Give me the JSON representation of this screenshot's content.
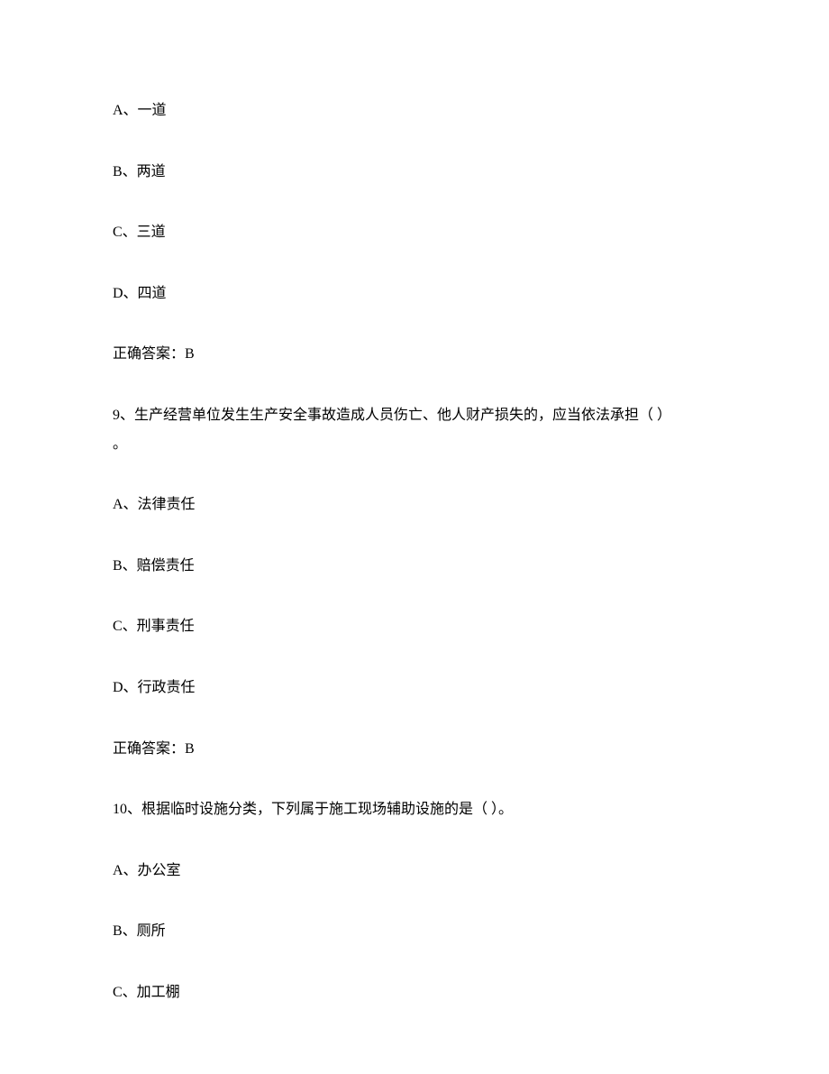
{
  "q8": {
    "optionA": "A、一道",
    "optionB": "B、两道",
    "optionC": "C、三道",
    "optionD": "D、四道",
    "answer": "正确答案：B"
  },
  "q9": {
    "stem_line1": "9、生产经营单位发生生产安全事故造成人员伤亡、他人财产损失的，应当依法承担（ ）",
    "stem_line2": "。",
    "optionA": "A、法律责任",
    "optionB": "B、赔偿责任",
    "optionC": "C、刑事责任",
    "optionD": "D、行政责任",
    "answer": "正确答案：B"
  },
  "q10": {
    "stem": "10、根据临时设施分类，下列属于施工现场辅助设施的是（ ）。",
    "optionA": "A、办公室",
    "optionB": "B、厕所",
    "optionC": "C、加工棚"
  }
}
